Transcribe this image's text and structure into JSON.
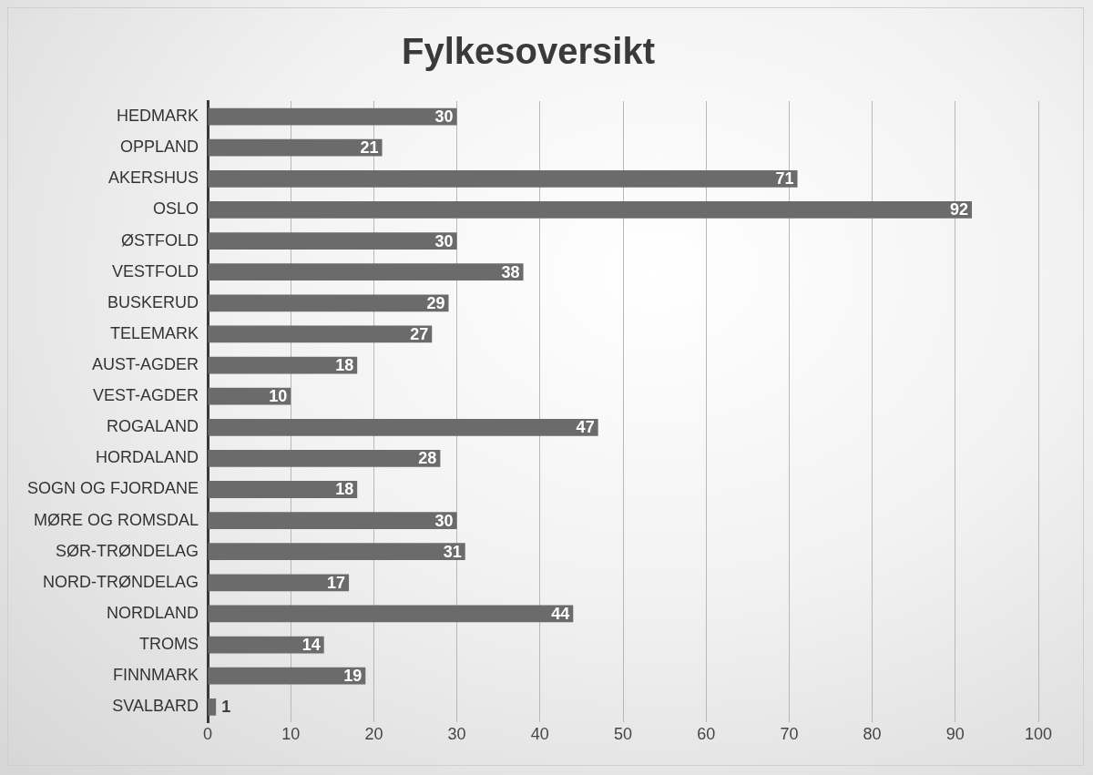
{
  "chart_data": {
    "type": "bar",
    "title": "Fylkesoversikt",
    "orientation": "horizontal",
    "categories": [
      "HEDMARK",
      "OPPLAND",
      "AKERSHUS",
      "OSLO",
      "ØSTFOLD",
      "VESTFOLD",
      "BUSKERUD",
      "TELEMARK",
      "AUST-AGDER",
      "VEST-AGDER",
      "ROGALAND",
      "HORDALAND",
      "SOGN OG FJORDANE",
      "MØRE OG ROMSDAL",
      "SØR-TRØNDELAG",
      "NORD-TRØNDELAG",
      "NORDLAND",
      "TROMS",
      "FINNMARK",
      "SVALBARD"
    ],
    "values": [
      30,
      21,
      71,
      92,
      30,
      38,
      29,
      27,
      18,
      10,
      47,
      28,
      18,
      30,
      31,
      17,
      44,
      14,
      19,
      1
    ],
    "color": "#6b6b6b",
    "xlim": [
      0,
      100
    ],
    "xticks": [
      0,
      10,
      20,
      30,
      40,
      50,
      60,
      70,
      80,
      90,
      100
    ],
    "grid": "x",
    "data_labels": true
  }
}
